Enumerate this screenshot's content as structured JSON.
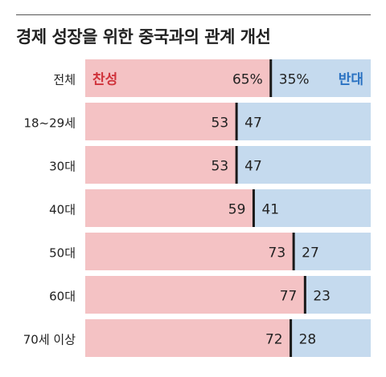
{
  "chart_data": {
    "type": "bar",
    "stacked": true,
    "orientation": "horizontal",
    "title": "경제 성장을 위한 중국과의 관계 개선",
    "categories": [
      "전체",
      "18~29세",
      "30대",
      "40대",
      "50대",
      "60대",
      "70세 이상"
    ],
    "series": [
      {
        "name": "찬성",
        "values": [
          65,
          53,
          53,
          59,
          73,
          77,
          72
        ]
      },
      {
        "name": "반대",
        "values": [
          35,
          47,
          47,
          41,
          27,
          23,
          28
        ]
      }
    ],
    "value_labels": [
      [
        "65%",
        "35%"
      ],
      [
        "53",
        "47"
      ],
      [
        "53",
        "47"
      ],
      [
        "59",
        "41"
      ],
      [
        "73",
        "27"
      ],
      [
        "77",
        "23"
      ],
      [
        "72",
        "28"
      ]
    ],
    "xlim": [
      0,
      100
    ],
    "grid": false,
    "legend": "inside-first-bar"
  },
  "colors": {
    "favor": "#f4c2c4",
    "oppose": "#c5daee",
    "favor_label": "#d0343c",
    "oppose_label": "#2a72c2",
    "separator": "#1a1a1a",
    "text": "#222222"
  }
}
